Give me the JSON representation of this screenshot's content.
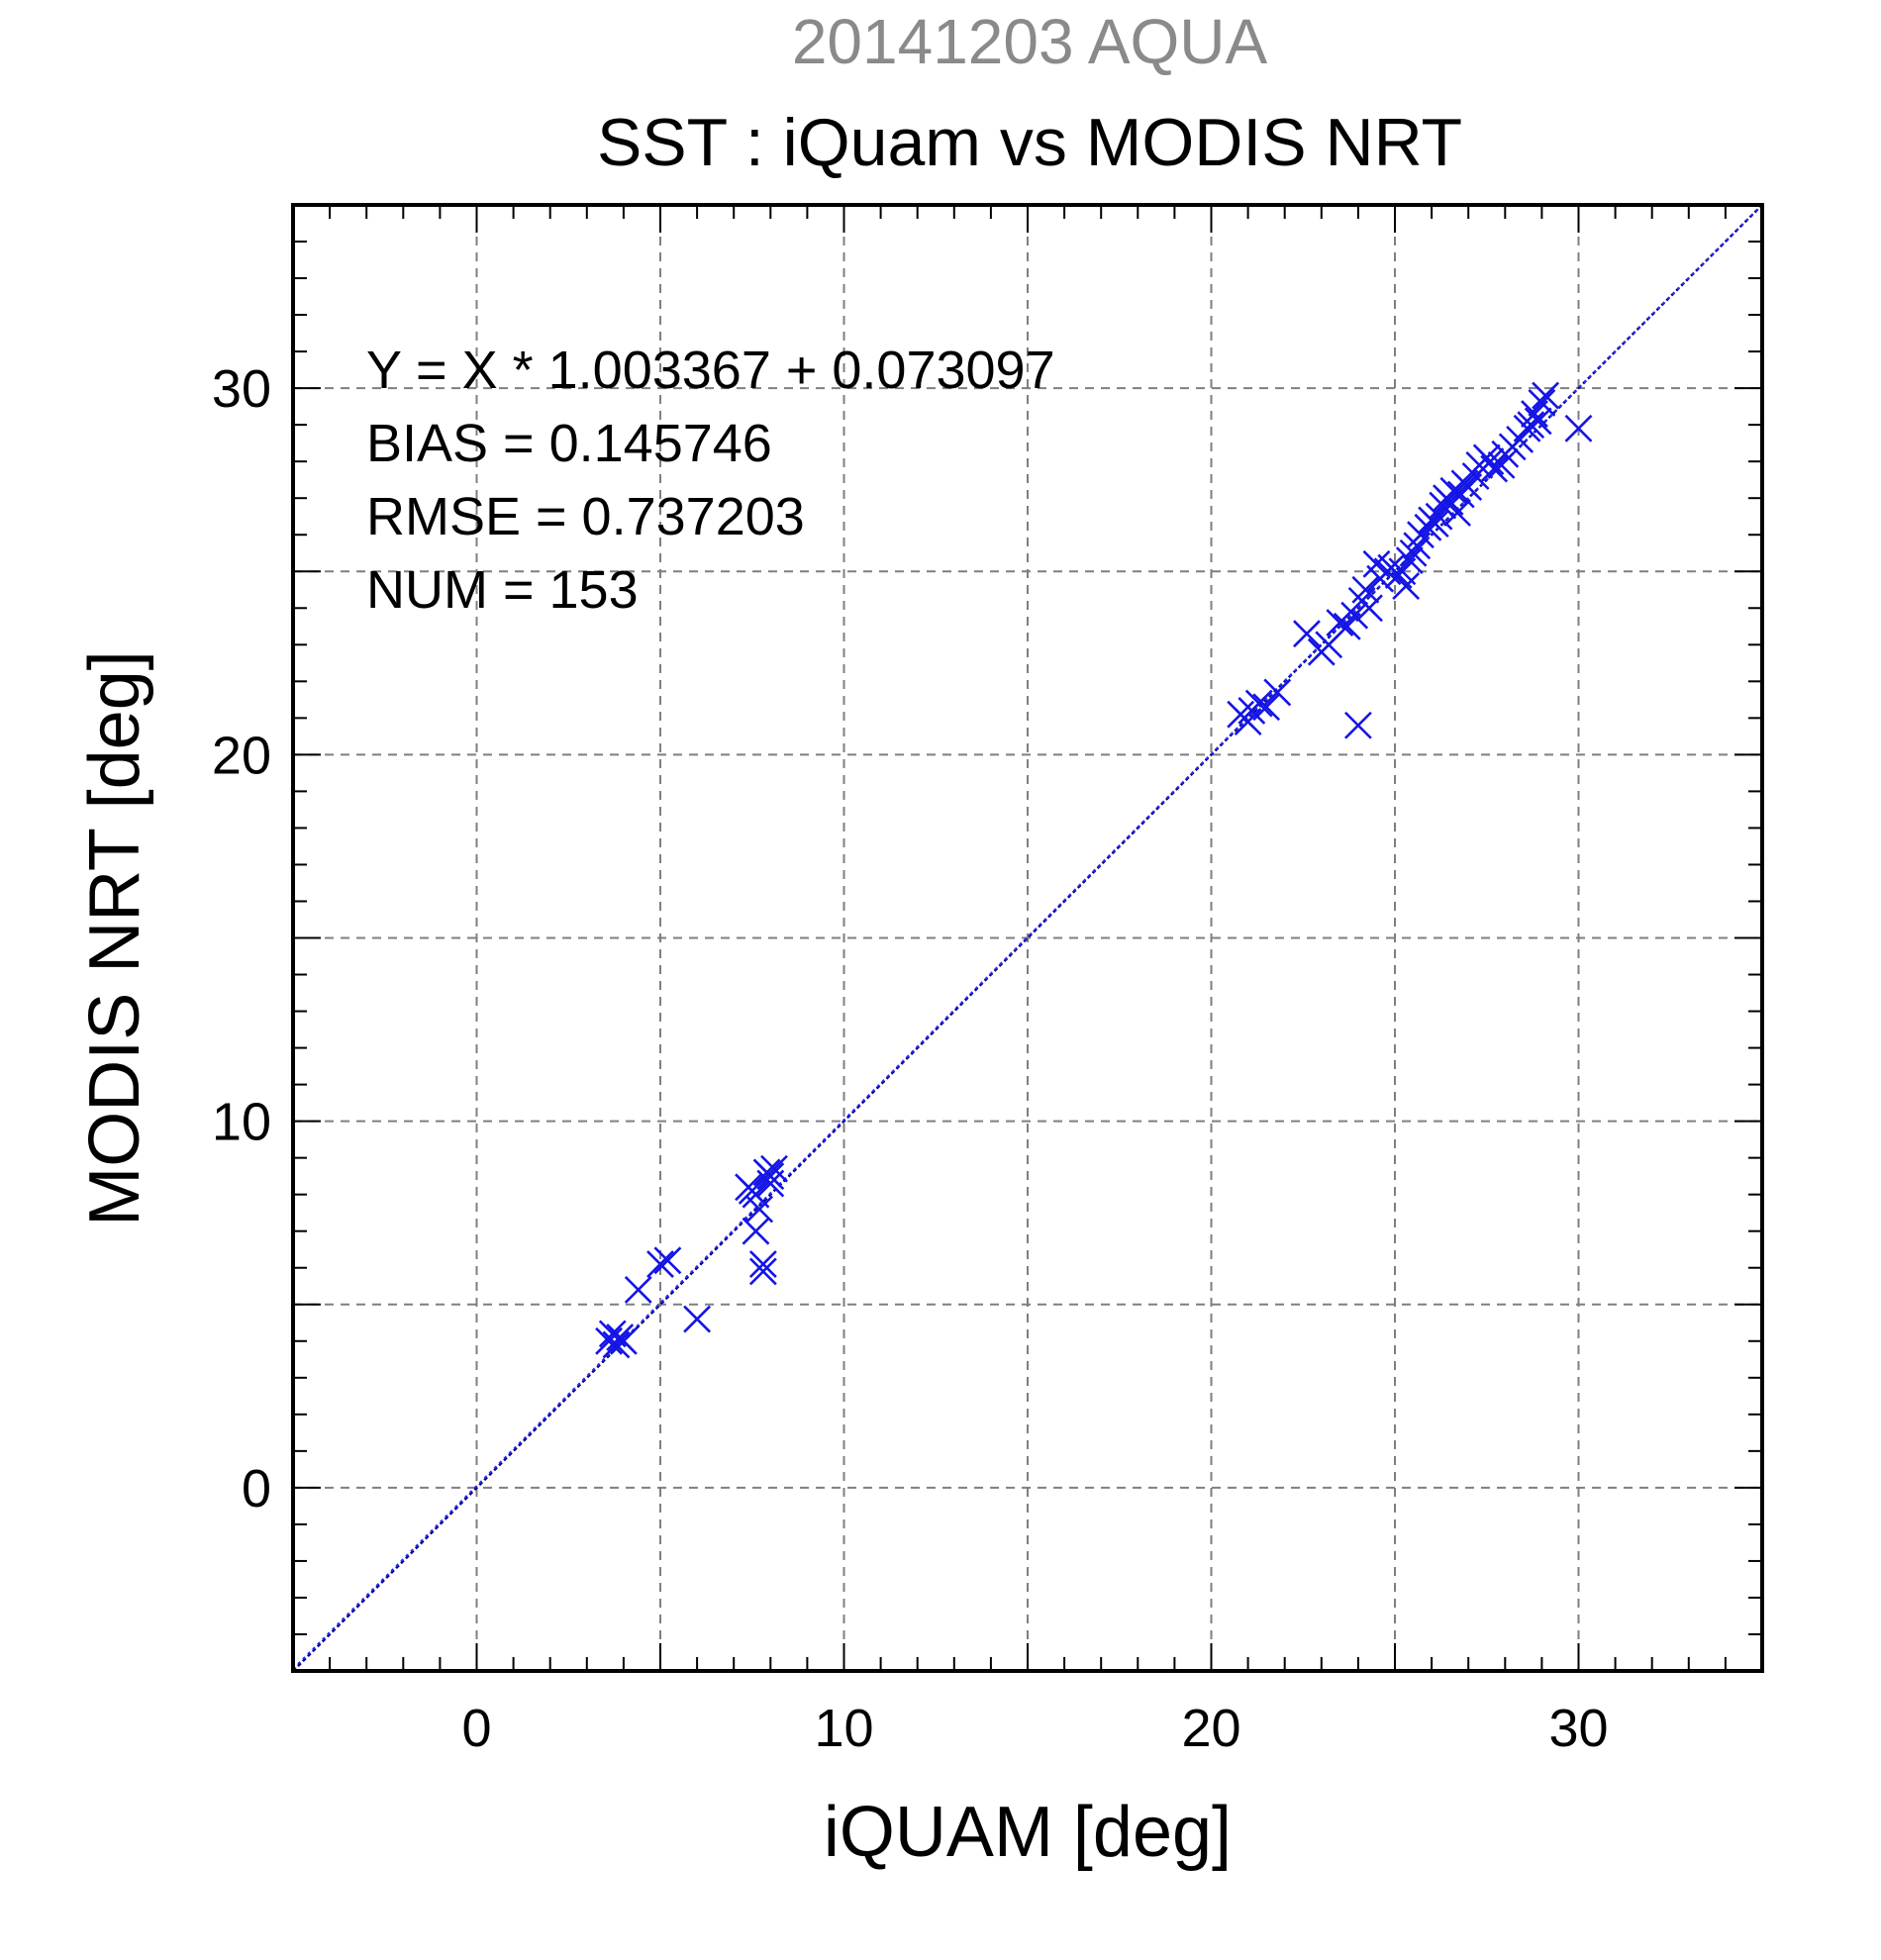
{
  "header": {
    "subtitle": "20141203 AQUA",
    "title": "SST : iQuam vs MODIS NRT"
  },
  "stats": {
    "regression": "Y = X * 1.003367 + 0.073097",
    "bias": "BIAS = 0.145746",
    "rmse": "RMSE = 0.737203",
    "num": "NUM = 153"
  },
  "colors": {
    "points": "#1414e6",
    "fit_line": "#000080",
    "grid": "#7f7f7f",
    "title_sub": "#8a8a8a"
  },
  "chart_data": {
    "type": "scatter",
    "xlabel": "iQUAM [deg]",
    "ylabel": "MODIS NRT [deg]",
    "xlim": [
      -5,
      35
    ],
    "ylim": [
      -5,
      35
    ],
    "xticks": [
      0,
      10,
      20,
      30
    ],
    "yticks": [
      0,
      10,
      20,
      30
    ],
    "grid": true,
    "marker": "x",
    "fit": {
      "slope": 1.003367,
      "intercept": 0.073097
    },
    "series": [
      {
        "x": [
          3.6,
          3.7,
          3.8,
          3.9,
          4.0,
          4.4,
          5.0,
          5.2,
          6.0,
          7.4,
          7.6,
          7.7,
          7.6,
          7.8,
          7.8,
          7.9,
          8.0,
          8.1,
          8.0,
          7.5,
          20.8,
          21.0,
          21.1,
          21.3,
          21.5,
          21.8,
          22.6,
          23.0,
          23.2,
          23.5,
          23.7,
          23.9,
          24.1,
          24.2,
          24.3,
          24.5,
          24.6,
          24.8,
          24.0,
          24.9,
          25.1,
          25.2,
          25.3,
          25.4,
          25.5,
          25.6,
          25.7,
          25.9,
          26.0,
          26.1,
          26.2,
          26.3,
          26.4,
          26.5,
          26.6,
          26.7,
          26.8,
          26.9,
          27.0,
          27.2,
          27.3,
          27.5,
          27.6,
          27.7,
          27.9,
          28.0,
          28.2,
          28.4,
          28.6,
          28.7,
          28.8,
          28.9,
          29.0,
          29.1,
          30.0
        ],
        "y": [
          4.0,
          4.2,
          3.9,
          4.1,
          4.0,
          5.4,
          6.1,
          6.2,
          4.6,
          8.2,
          8.0,
          7.6,
          7.0,
          6.1,
          5.9,
          8.6,
          8.5,
          8.7,
          8.3,
          8.1,
          21.1,
          20.9,
          21.2,
          21.4,
          21.3,
          21.7,
          23.3,
          22.8,
          23.0,
          23.6,
          23.5,
          23.8,
          24.2,
          24.5,
          24.0,
          25.2,
          24.8,
          25.0,
          20.8,
          25.1,
          24.9,
          25.0,
          24.6,
          25.3,
          25.5,
          25.7,
          26.0,
          26.2,
          26.4,
          26.3,
          26.5,
          26.8,
          27.0,
          26.9,
          27.2,
          26.6,
          27.1,
          27.4,
          27.3,
          27.6,
          27.9,
          28.1,
          28.0,
          27.8,
          27.9,
          28.2,
          28.4,
          28.6,
          28.9,
          29.0,
          29.3,
          29.1,
          29.6,
          29.8,
          28.9
        ]
      }
    ]
  }
}
